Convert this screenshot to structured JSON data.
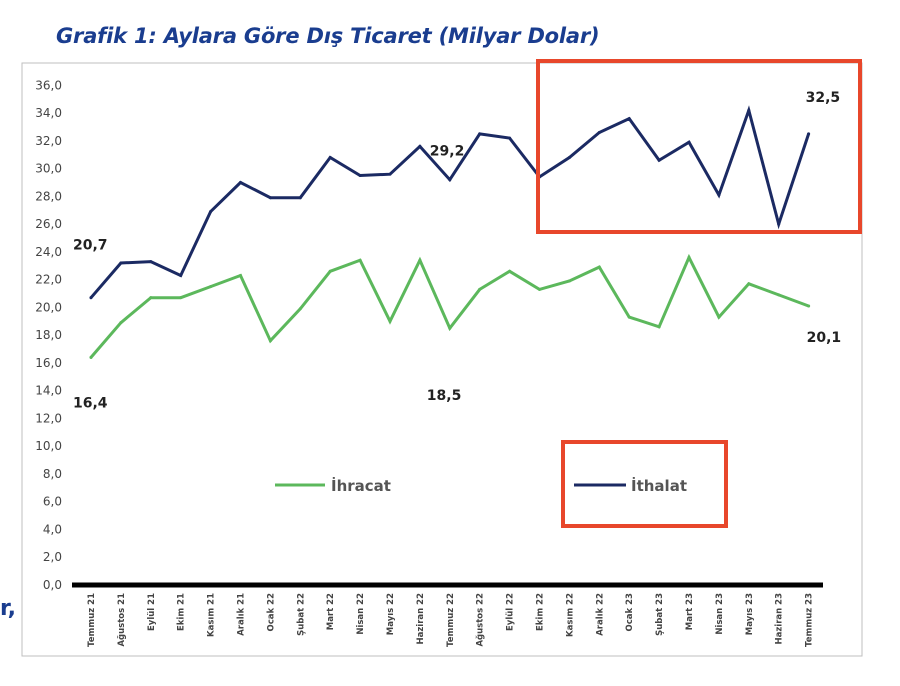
{
  "page": {
    "fragment_text": "r,"
  },
  "chart_data": {
    "type": "line",
    "title": "Grafik 1: Aylara Göre Dış Ticaret (Milyar Dolar)",
    "xlabel": "",
    "ylabel": "",
    "ylim": [
      0,
      36
    ],
    "yticks": [
      "0,0",
      "2,0",
      "4,0",
      "6,0",
      "8,0",
      "10,0",
      "12,0",
      "14,0",
      "16,0",
      "18,0",
      "20,0",
      "22,0",
      "24,0",
      "26,0",
      "28,0",
      "30,0",
      "32,0",
      "34,0",
      "36,0"
    ],
    "grid": false,
    "legend_position": "center",
    "categories": [
      "Temmuz 21",
      "Ağustos 21",
      "Eylül 21",
      "Ekim 21",
      "Kasım 21",
      "Aralık 21",
      "Ocak 22",
      "Şubat 22",
      "Mart 22",
      "Nisan 22",
      "Mayıs 22",
      "Haziran 22",
      "Temmuz 22",
      "Ağustos 22",
      "Eylül 22",
      "Ekim 22",
      "Kasım 22",
      "Aralık 22",
      "Ocak 23",
      "Şubat 23",
      "Mart 23",
      "Nisan 23",
      "Mayıs 23",
      "Haziran 23",
      "Temmuz 23"
    ],
    "series": [
      {
        "name": "İhracat",
        "color": "#5cb85c",
        "values": [
          16.4,
          18.9,
          20.7,
          20.7,
          21.5,
          22.3,
          17.6,
          19.9,
          22.6,
          23.4,
          19.0,
          23.4,
          18.5,
          21.3,
          22.6,
          21.3,
          21.9,
          22.9,
          19.3,
          18.6,
          23.6,
          19.3,
          21.7,
          20.9,
          20.1
        ]
      },
      {
        "name": "İthalat",
        "color": "#1b2a63",
        "values": [
          20.7,
          23.2,
          23.3,
          22.3,
          26.9,
          29.0,
          27.9,
          27.9,
          30.8,
          29.5,
          29.6,
          31.6,
          29.2,
          32.5,
          32.2,
          29.4,
          30.8,
          32.6,
          33.6,
          30.6,
          31.9,
          28.1,
          34.2,
          26.0,
          32.5
        ]
      }
    ],
    "data_labels": [
      {
        "series": "İthalat",
        "index": 0,
        "text": "20,7"
      },
      {
        "series": "İhracat",
        "index": 0,
        "text": "16,4"
      },
      {
        "series": "İthalat",
        "index": 12,
        "text": "29,2"
      },
      {
        "series": "İhracat",
        "index": 12,
        "text": "18,5"
      },
      {
        "series": "İthalat",
        "index": 24,
        "text": "32,5"
      },
      {
        "series": "İhracat",
        "index": 24,
        "text": "20,1"
      }
    ],
    "annotations": [
      {
        "type": "highlight-box",
        "color": "#e8472b",
        "target": "İthalat line, Kasım 22 – Temmuz 23"
      },
      {
        "type": "highlight-box",
        "color": "#e8472b",
        "target": "İthalat legend entry"
      }
    ]
  }
}
